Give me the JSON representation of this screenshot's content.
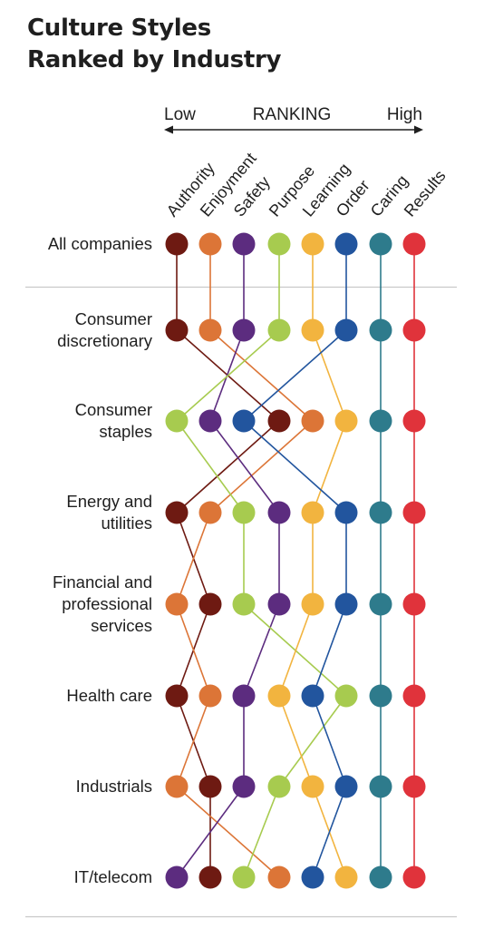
{
  "title": {
    "line1": "Culture Styles",
    "line2": "Ranked by Industry"
  },
  "chart_data": {
    "type": "slopegraph",
    "title": "Culture Styles Ranked by Industry",
    "axis": {
      "label": "RANKING",
      "low": "Low",
      "high": "High"
    },
    "styles": [
      "Authority",
      "Enjoyment",
      "Safety",
      "Purpose",
      "Learning",
      "Order",
      "Caring",
      "Results"
    ],
    "colors": {
      "Authority": "#6e1a12",
      "Enjoyment": "#dc7537",
      "Safety": "#5c2c7f",
      "Purpose": "#a7cb4f",
      "Learning": "#f2b43f",
      "Order": "#22559e",
      "Caring": "#2e7b8c",
      "Results": "#e0333b"
    },
    "rows": [
      {
        "label": [
          "All companies"
        ],
        "ranking": [
          "Authority",
          "Enjoyment",
          "Safety",
          "Purpose",
          "Learning",
          "Order",
          "Caring",
          "Results"
        ]
      },
      {
        "label": [
          "Consumer",
          "discretionary"
        ],
        "ranking": [
          "Authority",
          "Enjoyment",
          "Safety",
          "Purpose",
          "Learning",
          "Order",
          "Caring",
          "Results"
        ]
      },
      {
        "label": [
          "Consumer",
          "staples"
        ],
        "ranking": [
          "Purpose",
          "Safety",
          "Order",
          "Authority",
          "Enjoyment",
          "Learning",
          "Caring",
          "Results"
        ]
      },
      {
        "label": [
          "Energy and",
          "utilities"
        ],
        "ranking": [
          "Authority",
          "Enjoyment",
          "Purpose",
          "Safety",
          "Learning",
          "Order",
          "Caring",
          "Results"
        ]
      },
      {
        "label": [
          "Financial and",
          "professional",
          "services"
        ],
        "ranking": [
          "Enjoyment",
          "Authority",
          "Purpose",
          "Safety",
          "Learning",
          "Order",
          "Caring",
          "Results"
        ]
      },
      {
        "label": [
          "Health care"
        ],
        "ranking": [
          "Authority",
          "Enjoyment",
          "Safety",
          "Learning",
          "Order",
          "Purpose",
          "Caring",
          "Results"
        ]
      },
      {
        "label": [
          "Industrials"
        ],
        "ranking": [
          "Enjoyment",
          "Authority",
          "Safety",
          "Purpose",
          "Learning",
          "Order",
          "Caring",
          "Results"
        ]
      },
      {
        "label": [
          "IT/telecom"
        ],
        "ranking": [
          "Safety",
          "Authority",
          "Purpose",
          "Enjoyment",
          "Order",
          "Learning",
          "Caring",
          "Results"
        ]
      }
    ]
  }
}
